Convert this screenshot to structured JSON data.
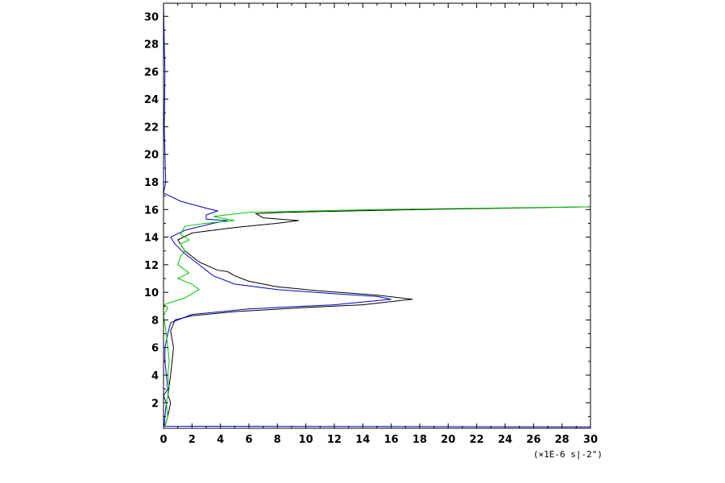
{
  "chart_data": {
    "type": "line",
    "title": "",
    "xlabel": "",
    "ylabel": "",
    "x_unit_label": "(×1E-6 s|-2\")",
    "xlim": [
      0,
      30
    ],
    "ylim": [
      0.15,
      30.95
    ],
    "x_ticks": [
      0,
      2,
      4,
      6,
      8,
      10,
      12,
      14,
      16,
      18,
      20,
      22,
      24,
      26,
      28,
      30
    ],
    "y_ticks": [
      2,
      4,
      6,
      8,
      10,
      12,
      14,
      16,
      18,
      20,
      22,
      24,
      26,
      28,
      30
    ],
    "grid": false,
    "series": [
      {
        "color": "#000000",
        "points": [
          [
            0.1,
            0.3
          ],
          [
            0.3,
            1.0
          ],
          [
            0.5,
            2.0
          ],
          [
            0.3,
            2.6
          ],
          [
            0.4,
            3.3
          ],
          [
            0.5,
            4.0
          ],
          [
            0.6,
            5.0
          ],
          [
            0.7,
            6.0
          ],
          [
            0.5,
            7.2
          ],
          [
            0.8,
            8.0
          ],
          [
            2.0,
            8.3
          ],
          [
            5.0,
            8.6
          ],
          [
            10.0,
            8.9
          ],
          [
            14.0,
            9.1
          ],
          [
            17.5,
            9.5
          ],
          [
            15.0,
            9.8
          ],
          [
            11.0,
            10.1
          ],
          [
            8.0,
            10.4
          ],
          [
            6.0,
            10.8
          ],
          [
            5.0,
            11.2
          ],
          [
            4.5,
            11.5
          ],
          [
            3.8,
            11.6
          ],
          [
            2.5,
            12.2
          ],
          [
            1.5,
            13.0
          ],
          [
            1.0,
            13.8
          ],
          [
            2.0,
            14.3
          ],
          [
            5.0,
            14.7
          ],
          [
            8.0,
            15.0
          ],
          [
            9.5,
            15.2
          ],
          [
            7.0,
            15.4
          ],
          [
            6.5,
            15.7
          ],
          [
            8.5,
            15.8
          ],
          [
            18.0,
            16.0
          ],
          [
            30.0,
            16.2
          ]
        ]
      },
      {
        "color": "#0000c8",
        "points": [
          [
            0.0,
            30.9
          ],
          [
            0.05,
            28.0
          ],
          [
            0.1,
            26.0
          ],
          [
            0.05,
            22.0
          ],
          [
            0.1,
            20.0
          ],
          [
            0.15,
            18.0
          ],
          [
            0.0,
            17.2
          ],
          [
            1.2,
            16.6
          ],
          [
            3.0,
            16.1
          ],
          [
            3.8,
            15.9
          ],
          [
            3.0,
            15.6
          ],
          [
            3.0,
            15.3
          ],
          [
            4.5,
            15.2
          ],
          [
            3.5,
            15.0
          ],
          [
            1.5,
            14.5
          ],
          [
            0.5,
            14.0
          ],
          [
            0.8,
            13.5
          ],
          [
            1.5,
            12.8
          ],
          [
            2.5,
            12.0
          ],
          [
            3.5,
            11.2
          ],
          [
            5.0,
            10.6
          ],
          [
            8.0,
            10.2
          ],
          [
            12.0,
            9.9
          ],
          [
            15.0,
            9.7
          ],
          [
            16.0,
            9.5
          ],
          [
            12.0,
            9.1
          ],
          [
            6.0,
            8.8
          ],
          [
            2.0,
            8.4
          ],
          [
            0.5,
            7.8
          ],
          [
            0.3,
            7.0
          ],
          [
            0.1,
            6.0
          ],
          [
            0.1,
            5.0
          ],
          [
            0.2,
            4.0
          ],
          [
            0.3,
            3.0
          ],
          [
            0.0,
            2.5
          ],
          [
            0.2,
            2.0
          ],
          [
            0.1,
            1.0
          ],
          [
            0.05,
            0.3
          ],
          [
            30.0,
            0.25
          ]
        ]
      },
      {
        "color": "#00c800",
        "points": [
          [
            0.1,
            0.3
          ],
          [
            0.3,
            1.0
          ],
          [
            0.2,
            2.0
          ],
          [
            0.4,
            3.0
          ],
          [
            0.3,
            4.0
          ],
          [
            0.4,
            5.0
          ],
          [
            0.3,
            6.0
          ],
          [
            0.2,
            7.0
          ],
          [
            0.0,
            8.3
          ],
          [
            0.3,
            8.9
          ],
          [
            0.0,
            9.1
          ],
          [
            1.5,
            9.6
          ],
          [
            2.5,
            10.2
          ],
          [
            2.0,
            10.6
          ],
          [
            1.0,
            11.0
          ],
          [
            1.8,
            11.4
          ],
          [
            1.0,
            12.0
          ],
          [
            1.2,
            12.6
          ],
          [
            1.5,
            13.0
          ],
          [
            1.2,
            13.5
          ],
          [
            1.8,
            13.8
          ],
          [
            1.2,
            14.2
          ],
          [
            1.5,
            14.8
          ],
          [
            3.0,
            15.0
          ],
          [
            5.0,
            15.2
          ],
          [
            3.5,
            15.5
          ],
          [
            6.0,
            15.8
          ],
          [
            15.0,
            16.0
          ],
          [
            30.0,
            16.2
          ]
        ]
      }
    ]
  }
}
